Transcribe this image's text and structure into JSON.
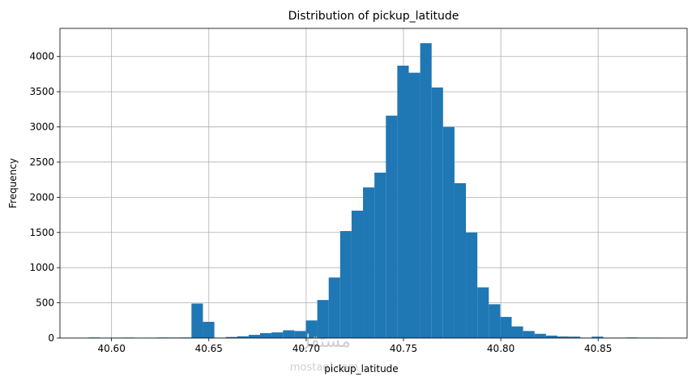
{
  "chart_data": {
    "type": "bar",
    "title": "Distribution of pickup_latitude",
    "xlabel": "pickup_latitude",
    "ylabel": "Frequency",
    "xlim": [
      40.5735,
      40.8957
    ],
    "ylim": [
      0,
      4400
    ],
    "grid": true,
    "bar_color": "#1f77b4",
    "grid_color": "#b0b0b0",
    "x_ticks": [
      40.6,
      40.65,
      40.7,
      40.75,
      40.8,
      40.85
    ],
    "x_tick_labels": [
      "40.60",
      "40.65",
      "40.70",
      "40.75",
      "40.80",
      "40.85"
    ],
    "y_ticks": [
      0,
      500,
      1000,
      1500,
      2000,
      2500,
      3000,
      3500,
      4000
    ],
    "y_tick_labels": [
      "0",
      "500",
      "1000",
      "1500",
      "2000",
      "2500",
      "3000",
      "3500",
      "4000"
    ],
    "bin_start": 40.5882,
    "bin_width": 0.005875,
    "values": [
      8,
      3,
      5,
      7,
      2,
      4,
      8,
      7,
      8,
      490,
      230,
      5,
      15,
      25,
      45,
      70,
      80,
      110,
      100,
      250,
      540,
      860,
      1520,
      1810,
      2140,
      2350,
      3160,
      3870,
      3770,
      4190,
      3560,
      3000,
      2200,
      1500,
      720,
      480,
      300,
      165,
      100,
      60,
      35,
      22,
      20,
      5,
      20,
      5,
      5,
      8,
      5,
      5
    ]
  },
  "watermark": {
    "text_arabic": "مستقل",
    "text_latin": "mostaql.com"
  }
}
